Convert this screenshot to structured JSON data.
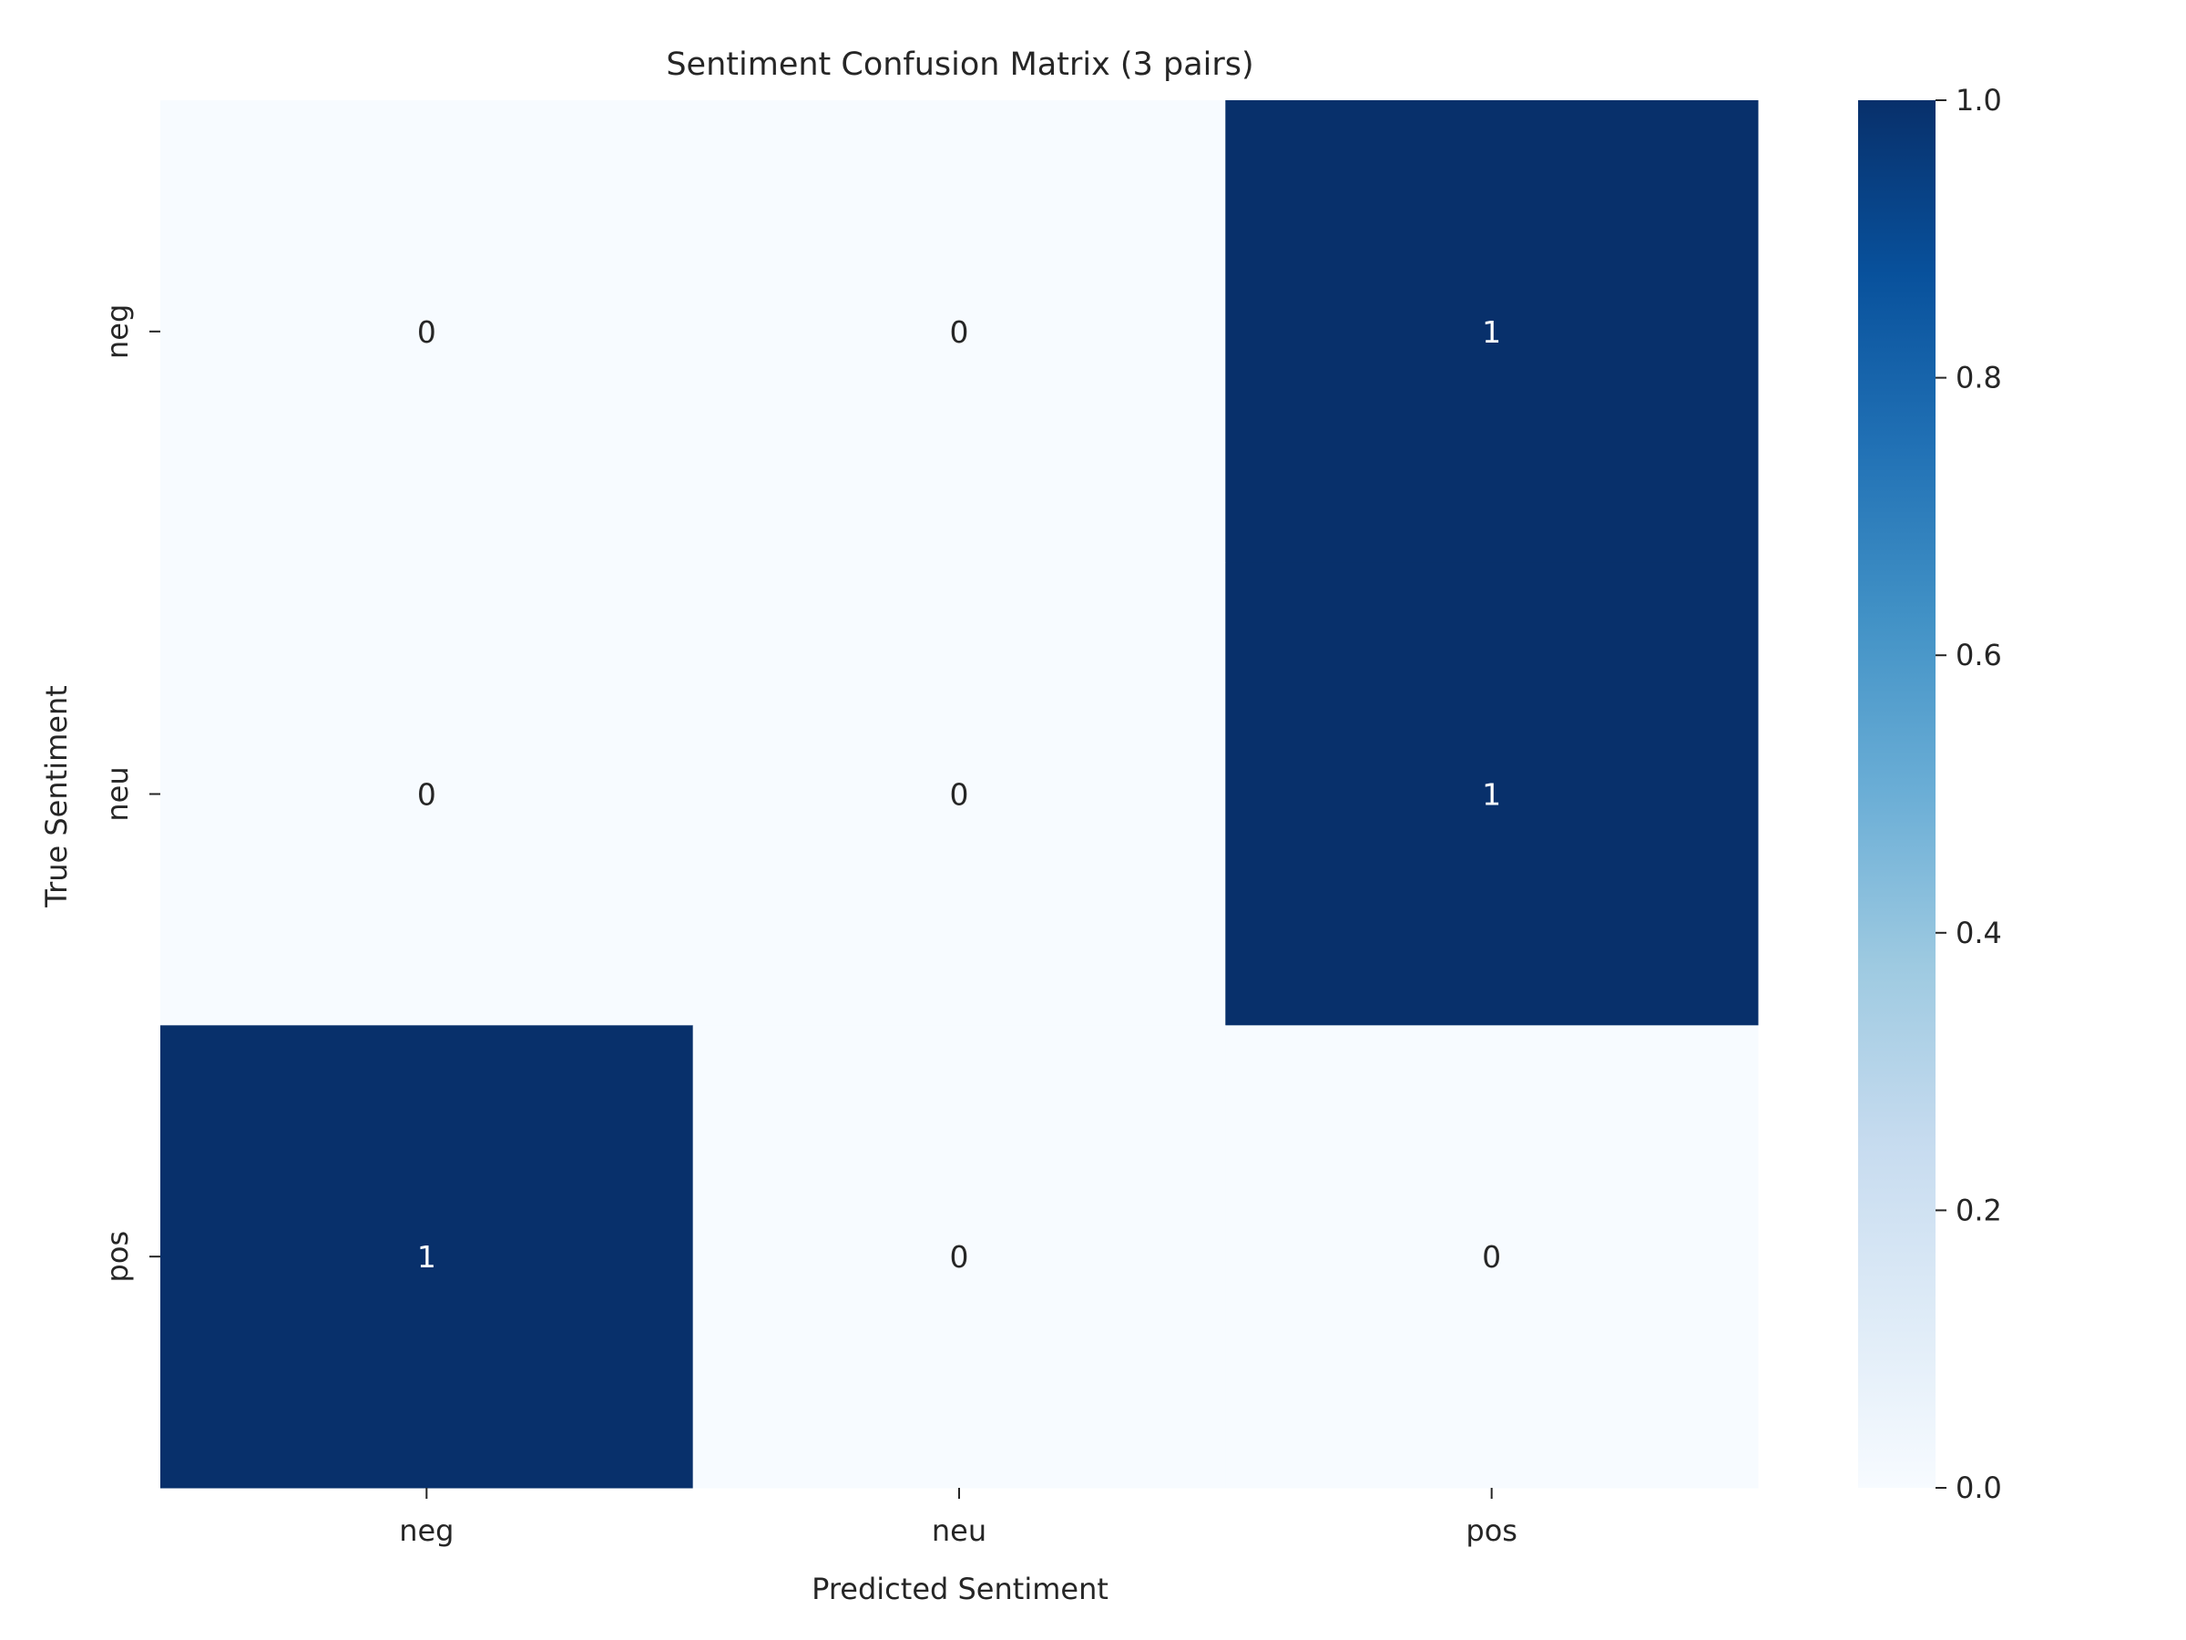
{
  "chart_data": {
    "type": "heatmap",
    "title": "Sentiment Confusion Matrix (3 pairs)",
    "xlabel": "Predicted Sentiment",
    "ylabel": "True Sentiment",
    "x_categories": [
      "neg",
      "neu",
      "pos"
    ],
    "y_categories": [
      "neg",
      "neu",
      "pos"
    ],
    "values": [
      [
        0,
        0,
        1
      ],
      [
        0,
        0,
        1
      ],
      [
        1,
        0,
        0
      ]
    ],
    "annotations": [
      [
        "0",
        "0",
        "1"
      ],
      [
        "0",
        "0",
        "1"
      ],
      [
        "1",
        "0",
        "0"
      ]
    ],
    "vmin": 0,
    "vmax": 1,
    "colormap": "Blues",
    "colorbar_ticks": [
      0.0,
      0.2,
      0.4,
      0.6,
      0.8,
      1.0
    ],
    "colorbar_tick_labels": [
      "0.0",
      "0.2",
      "0.4",
      "0.6",
      "0.8",
      "1.0"
    ],
    "colors": {
      "low": "#f7fbff",
      "high": "#08306b"
    }
  }
}
